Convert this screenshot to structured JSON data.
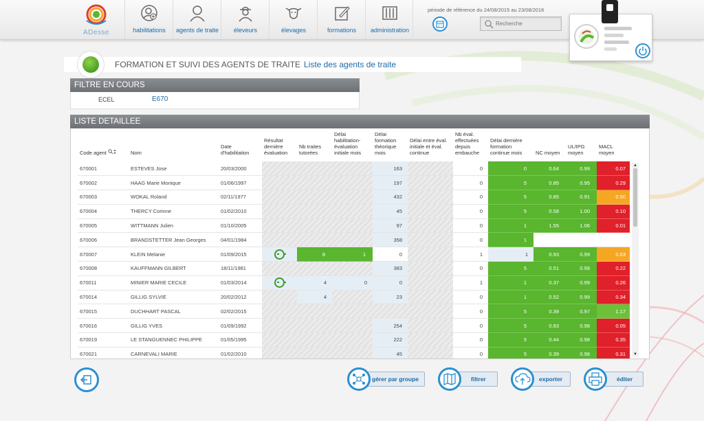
{
  "header": {
    "logo_text": "ADesse",
    "nav": [
      {
        "label": "habilitations",
        "icon": "user-badge-icon"
      },
      {
        "label": "agents de traite",
        "icon": "user-icon"
      },
      {
        "label": "éleveurs",
        "icon": "farmer-icon"
      },
      {
        "label": "élevages",
        "icon": "cow-icon"
      },
      {
        "label": "formations",
        "icon": "pencil-note-icon"
      },
      {
        "label": "administration",
        "icon": "server-icon"
      }
    ],
    "period": "période de référence du 24/08/2015 au 23/08/2016",
    "search_placeholder": "Recherche"
  },
  "title": {
    "main": "FORMATION ET SUIVI DES AGENTS DE TRAITE",
    "sub": "Liste des agents de traite"
  },
  "filter": {
    "header": "FILTRE EN COURS",
    "label": "ECEL",
    "value": "E670"
  },
  "list": {
    "header": "LISTE DETAILLEE",
    "columns": [
      "Code agent",
      "Nom",
      "Date d'habilitation",
      "Résultat dernière évaluation",
      "Nb traites tutorées",
      "Délai habilitation-évaluation initiale mois",
      "Délai formation théorique mois",
      "Délai entre éval. initiale et éval. continue",
      "Nb éval. effectuées depuis embauche",
      "Délai dernière formation continue mois",
      "NC moyen",
      "UL/IPG moyen",
      "MACL moyen"
    ],
    "rows": [
      {
        "code": "670001",
        "nom": "ESTEVES Jose",
        "date": "20/03/2000",
        "smiley": false,
        "traites": "",
        "delai_hab": "",
        "delai_form": "163",
        "delai_eval": "",
        "nb_eval": "0",
        "delai_cont": "0",
        "nc": "0.64",
        "ul": "0.99",
        "macl": "0.07",
        "macl_color": "red",
        "lb": false
      },
      {
        "code": "670002",
        "nom": "HAAG Marie Monique",
        "date": "01/06/1997",
        "smiley": false,
        "traites": "",
        "delai_hab": "",
        "delai_form": "197",
        "delai_eval": "",
        "nb_eval": "0",
        "delai_cont": "5",
        "nc": "0.85",
        "ul": "0.95",
        "macl": "0.29",
        "macl_color": "red",
        "lb": false
      },
      {
        "code": "670003",
        "nom": "WOKAL Roland",
        "date": "02/11/1977",
        "smiley": false,
        "traites": "",
        "delai_hab": "",
        "delai_form": "432",
        "delai_eval": "",
        "nb_eval": "0",
        "delai_cont": "5",
        "nc": "0.85",
        "ul": "0.91",
        "macl": "0.50",
        "macl_color": "orange",
        "lb": false
      },
      {
        "code": "670004",
        "nom": "THERCY Corinne",
        "date": "01/02/2010",
        "smiley": false,
        "traites": "",
        "delai_hab": "",
        "delai_form": "45",
        "delai_eval": "",
        "nb_eval": "0",
        "delai_cont": "5",
        "nc": "0.58",
        "ul": "1.00",
        "macl": "0.10",
        "macl_color": "red",
        "lb": false
      },
      {
        "code": "670005",
        "nom": "WITTMANN Julien",
        "date": "01/10/2005",
        "smiley": false,
        "traites": "",
        "delai_hab": "",
        "delai_form": "97",
        "delai_eval": "",
        "nb_eval": "0",
        "delai_cont": "1",
        "nc": "1.55",
        "ul": "1.06",
        "macl": "0.01",
        "macl_color": "red",
        "lb": false
      },
      {
        "code": "670006",
        "nom": "BRANDSTETTER Jean Georges",
        "date": "04/01/1984",
        "smiley": false,
        "traites": "",
        "delai_hab": "",
        "delai_form": "358",
        "delai_eval": "",
        "nb_eval": "0",
        "delai_cont": "1",
        "nc": "",
        "ul": "",
        "macl": "",
        "macl_color": "white",
        "lb": false
      },
      {
        "code": "670007",
        "nom": "KLEIN Melanie",
        "date": "01/09/2015",
        "smiley": true,
        "traites": "8",
        "delai_hab": "1",
        "delai_form": "0",
        "delai_eval": "",
        "nb_eval": "1",
        "delai_cont": "1",
        "nc": "0.93",
        "ul": "0.99",
        "macl": "0.63",
        "macl_color": "orange",
        "lb": true,
        "green_mid": true
      },
      {
        "code": "670008",
        "nom": "KAUFFMANN GILBERT",
        "date": "18/11/1981",
        "smiley": false,
        "traites": "",
        "delai_hab": "",
        "delai_form": "383",
        "delai_eval": "",
        "nb_eval": "0",
        "delai_cont": "5",
        "nc": "0.51",
        "ul": "0.99",
        "macl": "0.22",
        "macl_color": "red",
        "lb": false
      },
      {
        "code": "670011",
        "nom": "MINIER MARIE CECILE",
        "date": "01/03/2014",
        "smiley": true,
        "traites": "4",
        "delai_hab": "0",
        "delai_form": "0",
        "delai_eval": "",
        "nb_eval": "1",
        "delai_cont": "1",
        "nc": "0.37",
        "ul": "0.99",
        "macl": "0.26",
        "macl_color": "red",
        "lb": true
      },
      {
        "code": "670014",
        "nom": "GILLIG SYLVIE",
        "date": "20/02/2012",
        "smiley": false,
        "traites": "4",
        "delai_hab": "",
        "delai_form": "23",
        "delai_eval": "",
        "nb_eval": "0",
        "delai_cont": "1",
        "nc": "0.52",
        "ul": "0.99",
        "macl": "0.34",
        "macl_color": "red",
        "lb": false,
        "traites_lb": true
      },
      {
        "code": "670015",
        "nom": "DUCHHART PASCAL",
        "date": "02/02/2015",
        "smiley": false,
        "traites": "",
        "delai_hab": "",
        "delai_form": "",
        "delai_eval": "",
        "nb_eval": "0",
        "delai_cont": "5",
        "nc": "0.39",
        "ul": "0.97",
        "macl": "1.17",
        "macl_color": "lime",
        "lb": false
      },
      {
        "code": "670016",
        "nom": "GILLIG YVES",
        "date": "01/09/1992",
        "smiley": false,
        "traites": "",
        "delai_hab": "",
        "delai_form": "254",
        "delai_eval": "",
        "nb_eval": "0",
        "delai_cont": "5",
        "nc": "0.83",
        "ul": "0.98",
        "macl": "0.05",
        "macl_color": "red",
        "lb": false
      },
      {
        "code": "670019",
        "nom": "LE STANGUENNEC PHILIPPE",
        "date": "01/05/1995",
        "smiley": false,
        "traites": "",
        "delai_hab": "",
        "delai_form": "222",
        "delai_eval": "",
        "nb_eval": "0",
        "delai_cont": "5",
        "nc": "0.44",
        "ul": "0.98",
        "macl": "0.35",
        "macl_color": "red",
        "lb": false
      },
      {
        "code": "670021",
        "nom": "CARNEVALI MARIE",
        "date": "01/02/2010",
        "smiley": false,
        "traites": "",
        "delai_hab": "",
        "delai_form": "45",
        "delai_eval": "",
        "nb_eval": "0",
        "delai_cont": "5",
        "nc": "0.39",
        "ul": "0.98",
        "macl": "0.31",
        "macl_color": "red",
        "lb": false
      }
    ]
  },
  "actions": [
    {
      "label": "gérer par groupe",
      "icon": "group-icon"
    },
    {
      "label": "filtrer",
      "icon": "map-icon"
    },
    {
      "label": "exporter",
      "icon": "cloud-upload-icon"
    },
    {
      "label": "éditer",
      "icon": "printer-icon"
    }
  ],
  "colors": {
    "accent": "#1c6aa8",
    "green": "#5ab52f",
    "red": "#e0202a",
    "orange": "#f5a623",
    "panel_header": "#7a7e83"
  }
}
